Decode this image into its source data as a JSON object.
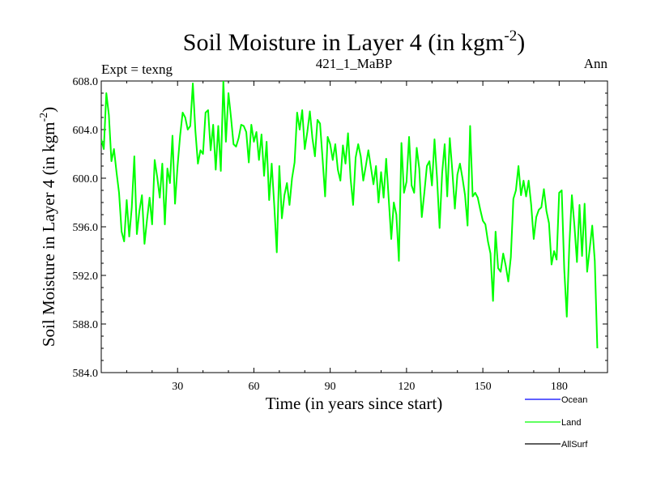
{
  "chart_data": {
    "type": "line",
    "title": "Soil Moisture in Layer 4 (in kgm",
    "title_sup": "-2",
    "title_end": ")",
    "subtitle_left": "Expt = texng",
    "subtitle_center": "421_1_MaBP",
    "subtitle_right": "Ann",
    "xlabel": "Time (in years since start)",
    "ylabel": "Soil Moisture in Layer 4 (in kgm",
    "ylabel_sup": "-2",
    "ylabel_end": ")",
    "xlim": [
      0,
      199
    ],
    "ylim": [
      584,
      608
    ],
    "xticks": [
      30,
      60,
      90,
      120,
      150,
      180
    ],
    "xtick_labels": [
      "30",
      "60",
      "90",
      "120",
      "150",
      "180"
    ],
    "yticks": [
      584,
      588,
      592,
      596,
      600,
      604,
      608
    ],
    "ytick_labels": [
      "584.0",
      "588.0",
      "592.0",
      "596.0",
      "600.0",
      "604.0",
      "608.0"
    ],
    "legend": [
      {
        "name": "Ocean",
        "color": "#0000ff"
      },
      {
        "name": "Land",
        "color": "#00ff00"
      },
      {
        "name": "AllSurf",
        "color": "#000000"
      }
    ],
    "series": [
      {
        "name": "Land",
        "color": "#00ff00",
        "x_start": 0,
        "x_step": 1,
        "values": [
          603.2,
          602.4,
          607.0,
          605.2,
          601.4,
          602.4,
          600.5,
          598.8,
          595.6,
          594.8,
          598.2,
          595.2,
          597.6,
          601.8,
          595.4,
          597.3,
          598.6,
          594.6,
          596.6,
          598.4,
          596.2,
          601.5,
          600.1,
          598.4,
          601.2,
          596.2,
          600.8,
          599.6,
          603.5,
          597.9,
          601.0,
          603.5,
          605.4,
          605.0,
          604.0,
          604.3,
          607.8,
          603.9,
          601.2,
          602.3,
          602.0,
          605.4,
          605.6,
          602.3,
          604.4,
          600.7,
          604.3,
          600.6,
          608.0,
          603.0,
          607.0,
          605.0,
          602.8,
          602.6,
          603.3,
          604.4,
          604.3,
          603.8,
          601.3,
          604.4,
          603.0,
          603.8,
          601.5,
          603.6,
          600.2,
          603.0,
          598.2,
          601.2,
          597.8,
          593.9,
          601.0,
          596.7,
          598.6,
          599.6,
          597.8,
          600.0,
          601.3,
          605.4,
          604.0,
          605.6,
          602.4,
          603.8,
          605.5,
          603.3,
          601.8,
          604.8,
          604.5,
          601.6,
          598.5,
          603.4,
          602.8,
          601.5,
          602.8,
          600.7,
          599.8,
          602.7,
          601.2,
          603.7,
          600.0,
          597.8,
          601.7,
          602.8,
          601.8,
          599.8,
          601.0,
          602.3,
          600.9,
          599.5,
          601.0,
          598.0,
          600.5,
          598.4,
          601.6,
          598.3,
          595.0,
          598.0,
          597.0,
          593.2,
          602.9,
          598.8,
          599.7,
          603.4,
          599.4,
          598.8,
          602.5,
          600.8,
          596.8,
          598.8,
          601.0,
          601.4,
          599.4,
          603.2,
          600.0,
          595.9,
          600.4,
          602.8,
          598.5,
          603.3,
          600.6,
          597.5,
          600.3,
          601.2,
          600.0,
          598.6,
          596.1,
          604.3,
          598.5,
          598.8,
          598.4,
          597.4,
          596.5,
          596.2,
          594.8,
          593.8,
          589.9,
          595.6,
          592.6,
          592.3,
          593.8,
          592.8,
          591.5,
          593.5,
          598.3,
          599.0,
          601.0,
          598.6,
          599.8,
          598.5,
          599.8,
          597.8,
          595.0,
          596.8,
          597.4,
          597.6,
          599.1,
          597.3,
          596.3,
          592.9,
          594.0,
          593.3,
          598.8,
          599.0,
          592.5,
          588.6,
          594.5,
          598.6,
          596.1,
          593.1,
          597.8,
          593.6,
          597.9,
          592.3,
          594.2,
          596.1,
          593.2,
          586.0
        ]
      },
      {
        "name": "Ocean",
        "color": "#0000ff",
        "values": []
      },
      {
        "name": "AllSurf",
        "color": "#000000",
        "values": []
      }
    ]
  }
}
